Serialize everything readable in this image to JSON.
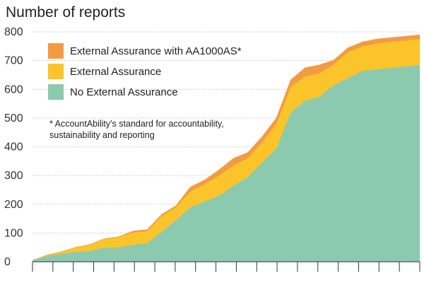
{
  "chart_data": {
    "type": "area",
    "stacked": true,
    "title": "Number of reports",
    "ylim": [
      0,
      800
    ],
    "yticks": [
      "0",
      "100",
      "200",
      "300",
      "400",
      "500",
      "600",
      "700",
      "800"
    ],
    "grid": true,
    "legend_position": "top-left",
    "x": [
      0,
      1,
      2,
      3,
      4,
      5,
      6,
      7,
      8,
      9,
      10,
      11,
      12,
      13,
      14,
      15,
      16,
      17,
      18,
      19,
      20,
      21,
      22,
      23,
      24,
      25,
      26,
      27
    ],
    "series": [
      {
        "name": "No External Assurance",
        "color": "#8bcaaf",
        "values": [
          5,
          20,
          28,
          35,
          38,
          50,
          50,
          60,
          65,
          105,
          145,
          190,
          210,
          230,
          265,
          295,
          345,
          395,
          520,
          560,
          575,
          615,
          640,
          665,
          670,
          675,
          680,
          685
        ]
      },
      {
        "name": "External Assurance",
        "color": "#fcc42b",
        "values": [
          0,
          3,
          7,
          15,
          22,
          30,
          37,
          42,
          42,
          55,
          45,
          55,
          60,
          70,
          70,
          65,
          70,
          85,
          88,
          85,
          80,
          72,
          90,
          85,
          90,
          90,
          90,
          90
        ]
      },
      {
        "name": "External Assurance with AA1000AS*",
        "color": "#f39b42",
        "values": [
          0,
          0,
          0,
          0,
          0,
          0,
          0,
          5,
          5,
          5,
          5,
          15,
          15,
          20,
          25,
          20,
          20,
          20,
          25,
          30,
          30,
          15,
          15,
          15,
          15,
          15,
          15,
          15
        ]
      }
    ],
    "legend": [
      {
        "label": "External Assurance with AA1000AS*",
        "color": "#f39b42"
      },
      {
        "label": "External Assurance",
        "color": "#fcc42b"
      },
      {
        "label": "No External Assurance",
        "color": "#8bcaaf"
      }
    ],
    "note_lines": [
      "* AccountAbility's standard for accountability,",
      "sustainability and reporting"
    ]
  }
}
